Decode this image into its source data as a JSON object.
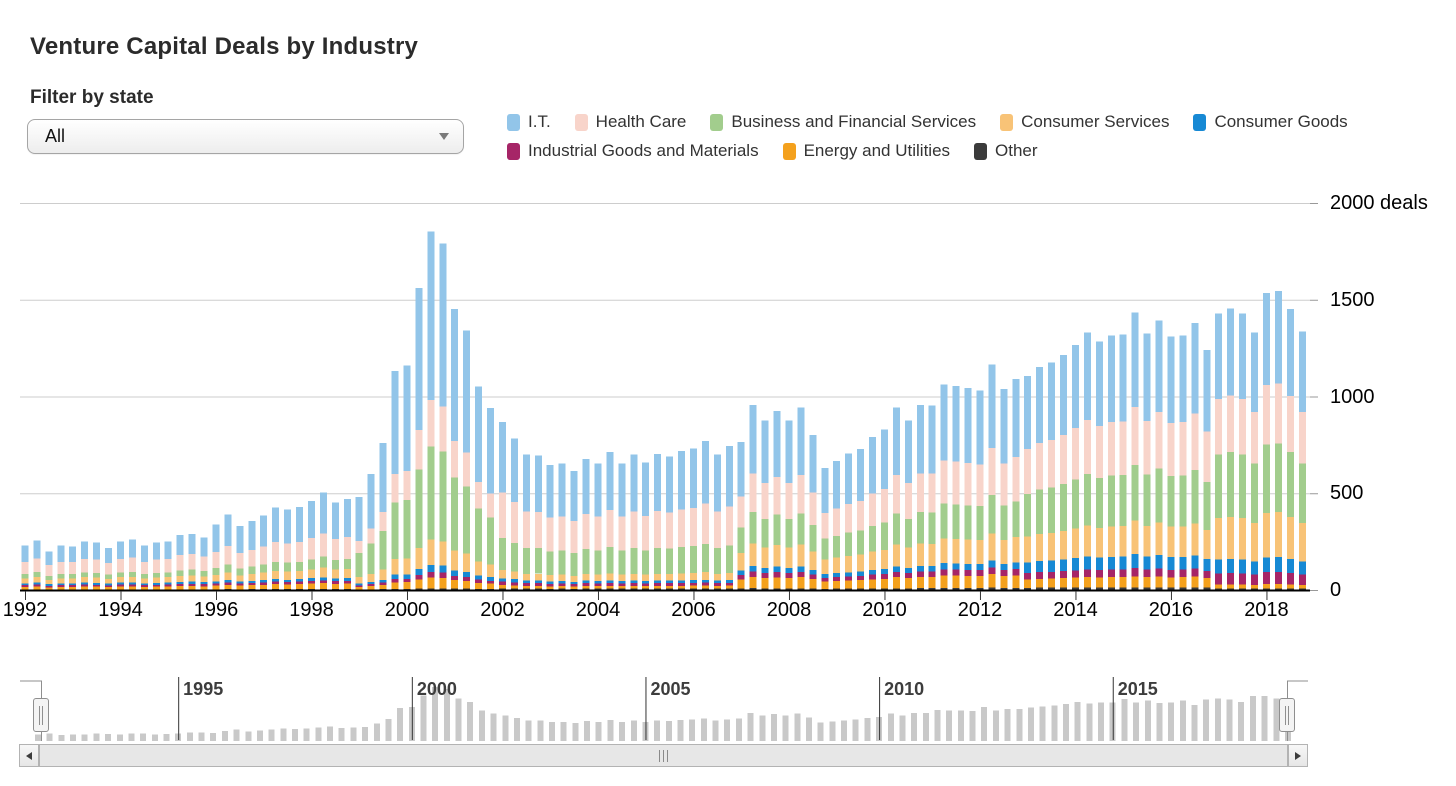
{
  "page": {
    "title": "Venture Capital Deals by Industry"
  },
  "filter": {
    "label": "Filter by state",
    "value": "All"
  },
  "legend": {
    "items": [
      {
        "label": "I.T.",
        "color": "#92C5E9"
      },
      {
        "label": "Health Care",
        "color": "#F8D4CA"
      },
      {
        "label": "Business and Financial Services",
        "color": "#A2CD8D"
      },
      {
        "label": "Consumer Services",
        "color": "#F8C377"
      },
      {
        "label": "Consumer Goods",
        "color": "#1789D4"
      },
      {
        "label": "Industrial Goods and Materials",
        "color": "#A62567"
      },
      {
        "label": "Energy and Utilities",
        "color": "#F4A11D"
      },
      {
        "label": "Other",
        "color": "#3B3B3B"
      }
    ]
  },
  "chart_data": {
    "type": "bar",
    "stacked": true,
    "title": "Venture Capital Deals by Industry",
    "x_interval": "quarterly",
    "x_start": "1992 Q1",
    "x_end": "2018 Q4",
    "x_tick_labels": [
      "1992",
      "1994",
      "1996",
      "1998",
      "2000",
      "2002",
      "2004",
      "2006",
      "2008",
      "2010",
      "2012",
      "2014",
      "2016",
      "2018"
    ],
    "ylim": [
      0,
      2000
    ],
    "y_ticks": [
      {
        "value": 0,
        "label": "0"
      },
      {
        "value": 500,
        "label": "500"
      },
      {
        "value": 1000,
        "label": "1000"
      },
      {
        "value": 1500,
        "label": "1500"
      },
      {
        "value": 2000,
        "label": "2000 deals"
      }
    ],
    "grid": "horizontal",
    "legend_position": "top",
    "stack_order_bottom_to_top": [
      "Other",
      "Energy and Utilities",
      "Industrial Goods and Materials",
      "Consumer Goods",
      "Consumer Services",
      "Business and Financial Services",
      "Health Care",
      "I.T."
    ],
    "series": [
      {
        "name": "I.T.",
        "color": "#92C5E9",
        "values": [
          83,
          92,
          72,
          83,
          81,
          90,
          88,
          77,
          90,
          94,
          83,
          88,
          90,
          103,
          104,
          97,
          143,
          164,
          139,
          149,
          162,
          179,
          174,
          181,
          193,
          212,
          189,
          197,
          226,
          282,
          357,
          531,
          545,
          733,
          870,
          841,
          682,
          630,
          494,
          442,
          365,
          328,
          294,
          292,
          271,
          275,
          258,
          284,
          275,
          300,
          275,
          294,
          277,
          296,
          290,
          302,
          307,
          323,
          294,
          313,
          283,
          353,
          324,
          342,
          324,
          350,
          296,
          233,
          246,
          261,
          270,
          292,
          307,
          350,
          324,
          353,
          352,
          392,
          389,
          387,
          381,
          431,
          385,
          403,
          376,
          391,
          400,
          413,
          430,
          452,
          437,
          447,
          449,
          488,
          451,
          473,
          445,
          447,
          469,
          422,
          443,
          451,
          443,
          412,
          476,
          479,
          450,
          414
        ]
      },
      {
        "name": "Health Care",
        "color": "#F8D4CA",
        "values": [
          64,
          71,
          56,
          64,
          63,
          70,
          69,
          60,
          70,
          73,
          64,
          69,
          70,
          80,
          81,
          76,
          82,
          94,
          79,
          85,
          92,
          102,
          100,
          103,
          110,
          121,
          108,
          113,
          62,
          78,
          99,
          147,
          151,
          203,
          241,
          233,
          189,
          174,
          137,
          122,
          235,
          211,
          189,
          188,
          174,
          177,
          166,
          182,
          177,
          193,
          177,
          189,
          178,
          190,
          186,
          194,
          197,
          208,
          189,
          201,
          161,
          201,
          184,
          194,
          184,
          198,
          168,
          132,
          140,
          148,
          153,
          166,
          174,
          198,
          184,
          201,
          200,
          223,
          221,
          219,
          216,
          245,
          218,
          229,
          232,
          242,
          247,
          255,
          266,
          279,
          270,
          276,
          277,
          301,
          278,
          292,
          275,
          276,
          290,
          260,
          286,
          291,
          286,
          266,
          307,
          309,
          290,
          267
        ]
      },
      {
        "name": "Business and Financial Services",
        "color": "#A2CD8D",
        "values": [
          23,
          26,
          20,
          23,
          23,
          25,
          25,
          22,
          25,
          26,
          23,
          25,
          25,
          29,
          29,
          27,
          37,
          43,
          36,
          39,
          42,
          47,
          46,
          47,
          51,
          56,
          50,
          52,
          125,
          156,
          198,
          294,
          302,
          406,
          481,
          465,
          377,
          348,
          273,
          244,
          165,
          148,
          133,
          132,
          123,
          124,
          117,
          128,
          124,
          136,
          124,
          133,
          125,
          134,
          131,
          137,
          139,
          146,
          133,
          142,
          130,
          162,
          149,
          157,
          149,
          161,
          136,
          107,
          113,
          120,
          124,
          134,
          141,
          161,
          149,
          162,
          162,
          180,
          179,
          178,
          175,
          198,
          177,
          185,
          221,
          230,
          235,
          243,
          253,
          266,
          257,
          263,
          264,
          287,
          265,
          278,
          262,
          263,
          276,
          248,
          329,
          335,
          329,
          306,
          353,
          355,
          334,
          307
        ]
      },
      {
        "name": "Consumer Services",
        "color": "#F8C377",
        "values": [
          25,
          28,
          22,
          25,
          25,
          28,
          27,
          24,
          28,
          29,
          25,
          27,
          28,
          31,
          32,
          30,
          34,
          39,
          33,
          36,
          39,
          43,
          42,
          43,
          46,
          51,
          45,
          47,
          34,
          42,
          53,
          79,
          81,
          109,
          130,
          125,
          102,
          94,
          74,
          66,
          44,
          39,
          35,
          35,
          32,
          33,
          31,
          34,
          33,
          36,
          33,
          35,
          33,
          35,
          35,
          36,
          37,
          39,
          35,
          37,
          92,
          115,
          105,
          111,
          105,
          113,
          96,
          76,
          80,
          85,
          88,
          95,
          100,
          113,
          105,
          115,
          114,
          127,
          126,
          125,
          124,
          140,
          125,
          131,
          133,
          138,
          141,
          146,
          152,
          160,
          154,
          158,
          158,
          172,
          159,
          167,
          157,
          158,
          166,
          149,
          215,
          218,
          215,
          200,
          230,
          232,
          218,
          200
        ]
      },
      {
        "name": "Consumer Goods",
        "color": "#1789D4",
        "values": [
          9,
          10,
          8,
          9,
          9,
          10,
          10,
          9,
          10,
          10,
          9,
          10,
          10,
          11,
          12,
          11,
          10,
          12,
          10,
          11,
          12,
          13,
          12,
          13,
          14,
          15,
          14,
          14,
          10,
          12,
          15,
          23,
          23,
          31,
          37,
          36,
          29,
          27,
          21,
          19,
          17,
          16,
          14,
          14,
          13,
          13,
          12,
          14,
          13,
          14,
          13,
          14,
          13,
          14,
          14,
          14,
          15,
          15,
          14,
          15,
          23,
          29,
          26,
          28,
          26,
          28,
          24,
          19,
          20,
          21,
          22,
          24,
          25,
          28,
          26,
          29,
          29,
          32,
          32,
          31,
          31,
          35,
          31,
          33,
          55,
          58,
          59,
          61,
          63,
          67,
          64,
          66,
          66,
          72,
          66,
          70,
          66,
          66,
          69,
          62,
          72,
          73,
          72,
          67,
          77,
          77,
          73,
          67
        ]
      },
      {
        "name": "Industrial Goods and Materials",
        "color": "#A62567",
        "values": [
          9,
          10,
          8,
          9,
          9,
          10,
          10,
          9,
          10,
          10,
          9,
          10,
          10,
          11,
          12,
          11,
          10,
          12,
          10,
          11,
          12,
          13,
          12,
          13,
          14,
          15,
          14,
          14,
          7,
          9,
          11,
          17,
          17,
          23,
          28,
          27,
          22,
          20,
          16,
          14,
          17,
          16,
          14,
          14,
          13,
          13,
          12,
          14,
          13,
          14,
          13,
          14,
          13,
          14,
          14,
          14,
          15,
          15,
          14,
          15,
          23,
          29,
          26,
          28,
          26,
          28,
          24,
          19,
          20,
          21,
          22,
          24,
          25,
          28,
          26,
          29,
          29,
          32,
          32,
          31,
          31,
          35,
          31,
          33,
          33,
          35,
          35,
          36,
          38,
          40,
          39,
          39,
          40,
          43,
          40,
          42,
          39,
          39,
          41,
          37,
          57,
          58,
          57,
          53,
          61,
          62,
          58,
          53
        ]
      },
      {
        "name": "Energy and Utilities",
        "color": "#F4A11D",
        "values": [
          14,
          15,
          12,
          14,
          14,
          15,
          15,
          13,
          15,
          16,
          14,
          15,
          15,
          17,
          17,
          16,
          20,
          23,
          20,
          21,
          23,
          26,
          25,
          26,
          28,
          30,
          27,
          28,
          14,
          18,
          23,
          34,
          35,
          47,
          56,
          54,
          44,
          40,
          32,
          28,
          17,
          16,
          14,
          14,
          13,
          13,
          12,
          14,
          13,
          14,
          13,
          14,
          13,
          14,
          14,
          14,
          15,
          15,
          14,
          15,
          46,
          57,
          53,
          56,
          53,
          57,
          48,
          38,
          40,
          42,
          44,
          47,
          50,
          57,
          53,
          57,
          57,
          64,
          63,
          63,
          62,
          70,
          62,
          65,
          44,
          46,
          47,
          49,
          51,
          53,
          51,
          53,
          53,
          57,
          53,
          56,
          52,
          53,
          55,
          50,
          21,
          22,
          21,
          20,
          23,
          23,
          22,
          20
        ]
      },
      {
        "name": "Other",
        "color": "#3B3B3B",
        "values": [
          2,
          3,
          2,
          2,
          2,
          3,
          2,
          2,
          3,
          3,
          2,
          2,
          3,
          3,
          3,
          3,
          3,
          4,
          3,
          4,
          4,
          4,
          4,
          4,
          5,
          5,
          5,
          5,
          2,
          3,
          4,
          6,
          6,
          8,
          9,
          9,
          7,
          7,
          5,
          5,
          9,
          8,
          7,
          7,
          6,
          7,
          6,
          7,
          7,
          7,
          7,
          7,
          7,
          7,
          7,
          7,
          7,
          8,
          7,
          7,
          8,
          10,
          9,
          9,
          9,
          9,
          8,
          6,
          7,
          7,
          7,
          8,
          8,
          9,
          9,
          10,
          10,
          11,
          11,
          10,
          10,
          12,
          10,
          11,
          11,
          12,
          12,
          12,
          13,
          13,
          13,
          13,
          13,
          14,
          13,
          14,
          13,
          13,
          14,
          12,
          7,
          7,
          7,
          7,
          8,
          8,
          7,
          7
        ]
      }
    ]
  },
  "navigator": {
    "tick_labels": [
      {
        "year": 1995,
        "label": "1995"
      },
      {
        "year": 2000,
        "label": "2000"
      },
      {
        "year": 2005,
        "label": "2005"
      },
      {
        "year": 2010,
        "label": "2010"
      },
      {
        "year": 2015,
        "label": "2015"
      }
    ],
    "bar_color": "#C9C9C9"
  }
}
